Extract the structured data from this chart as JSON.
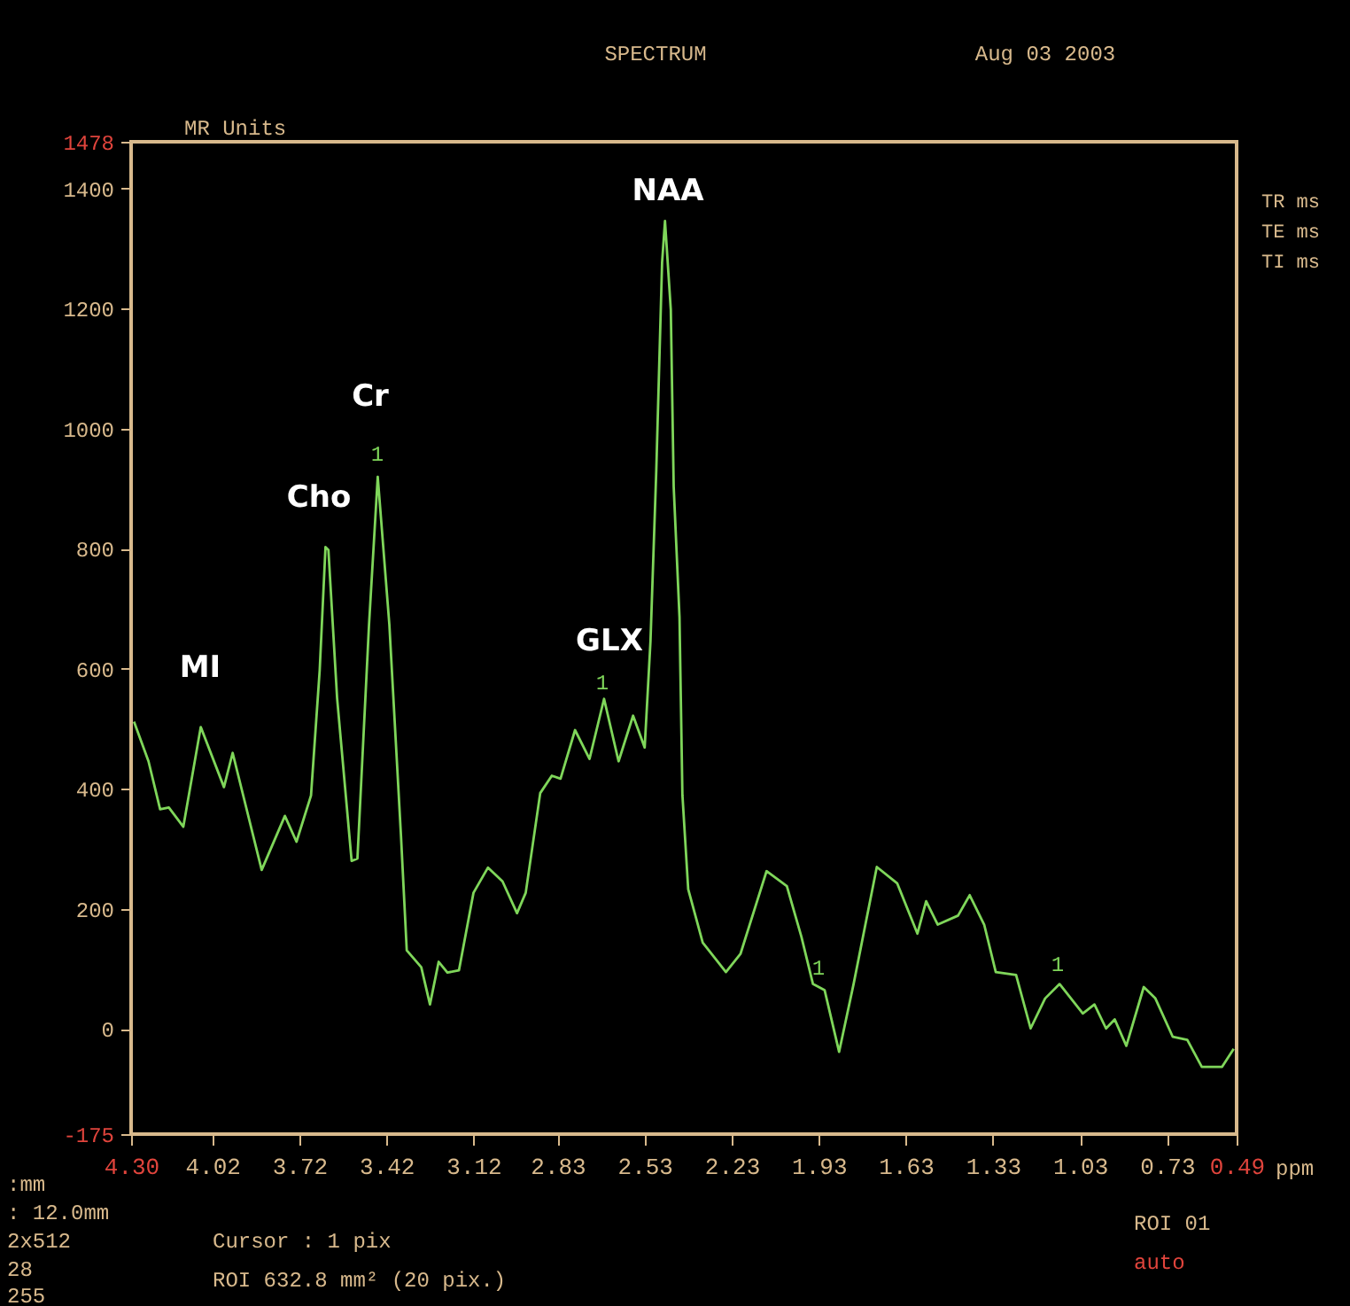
{
  "chart_data": {
    "type": "line",
    "title": "SPECTRUM",
    "subtitle": "Aug 03 2003",
    "xlabel": "ppm",
    "ylabel": "MR Units",
    "x": [
      4.29,
      4.24,
      4.2,
      4.17,
      4.12,
      4.06,
      3.98,
      3.95,
      3.85,
      3.77,
      3.73,
      3.68,
      3.65,
      3.63,
      3.62,
      3.59,
      3.54,
      3.52,
      3.48,
      3.45,
      3.41,
      3.37,
      3.35,
      3.3,
      3.27,
      3.24,
      3.21,
      3.17,
      3.12,
      3.07,
      3.02,
      2.97,
      2.94,
      2.89,
      2.85,
      2.82,
      2.77,
      2.72,
      2.67,
      2.62,
      2.57,
      2.53,
      2.51,
      2.49,
      2.47,
      2.46,
      2.44,
      2.43,
      2.41,
      2.4,
      2.38,
      2.33,
      2.25,
      2.2,
      2.11,
      2.04,
      1.99,
      1.95,
      1.91,
      1.86,
      1.81,
      1.73,
      1.66,
      1.59,
      1.56,
      1.52,
      1.45,
      1.41,
      1.36,
      1.32,
      1.25,
      1.2,
      1.15,
      1.1,
      1.02,
      0.98,
      0.94,
      0.91,
      0.87,
      0.81,
      0.77,
      0.71,
      0.66,
      0.61,
      0.54,
      0.5
    ],
    "series": [
      {
        "color": "#7fd65a",
        "values": [
          512,
          446,
          366,
          369,
          337,
          503,
          403,
          460,
          265,
          355,
          312,
          389,
          598,
          803,
          798,
          551,
          280,
          284,
          674,
          920,
          674,
          323,
          131,
          103,
          41,
          112,
          94,
          98,
          227,
          269,
          246,
          193,
          227,
          393,
          422,
          417,
          498,
          450,
          550,
          446,
          522,
          469,
          646,
          931,
          1277,
          1346,
          1198,
          903,
          686,
          390,
          233,
          144,
          95,
          125,
          263,
          238,
          154,
          75,
          65,
          -38,
          75,
          270,
          243,
          159,
          213,
          174,
          189,
          223,
          174,
          95,
          90,
          1,
          51,
          75,
          26,
          41,
          1,
          16,
          -28,
          70,
          51,
          -13,
          -18,
          -63,
          -63,
          -33
        ]
      }
    ],
    "xlim": [
      4.3,
      0.49
    ],
    "xticks": [
      {
        "value": 4.3,
        "label": "4.30"
      },
      4.02,
      3.72,
      3.42,
      3.12,
      2.83,
      2.53,
      2.23,
      1.93,
      1.63,
      1.33,
      1.03,
      0.73,
      0.49
    ],
    "ylim": [
      -175,
      1478
    ],
    "yticks": [
      -175,
      0,
      200,
      400,
      600,
      800,
      1000,
      1200,
      1400,
      1478
    ],
    "annotations": [
      "MI",
      "Cho",
      "Cr",
      "GLX",
      "NAA",
      "1",
      "1",
      "1",
      "1",
      "TR ms",
      "TE ms",
      "TI ms",
      ":mm",
      ": 12.0mm",
      "2x512",
      "28",
      "255",
      "Cursor : 1 pix",
      "ROI 632.8 mm² (20 pix.)",
      "ROI 01",
      "auto"
    ]
  }
}
